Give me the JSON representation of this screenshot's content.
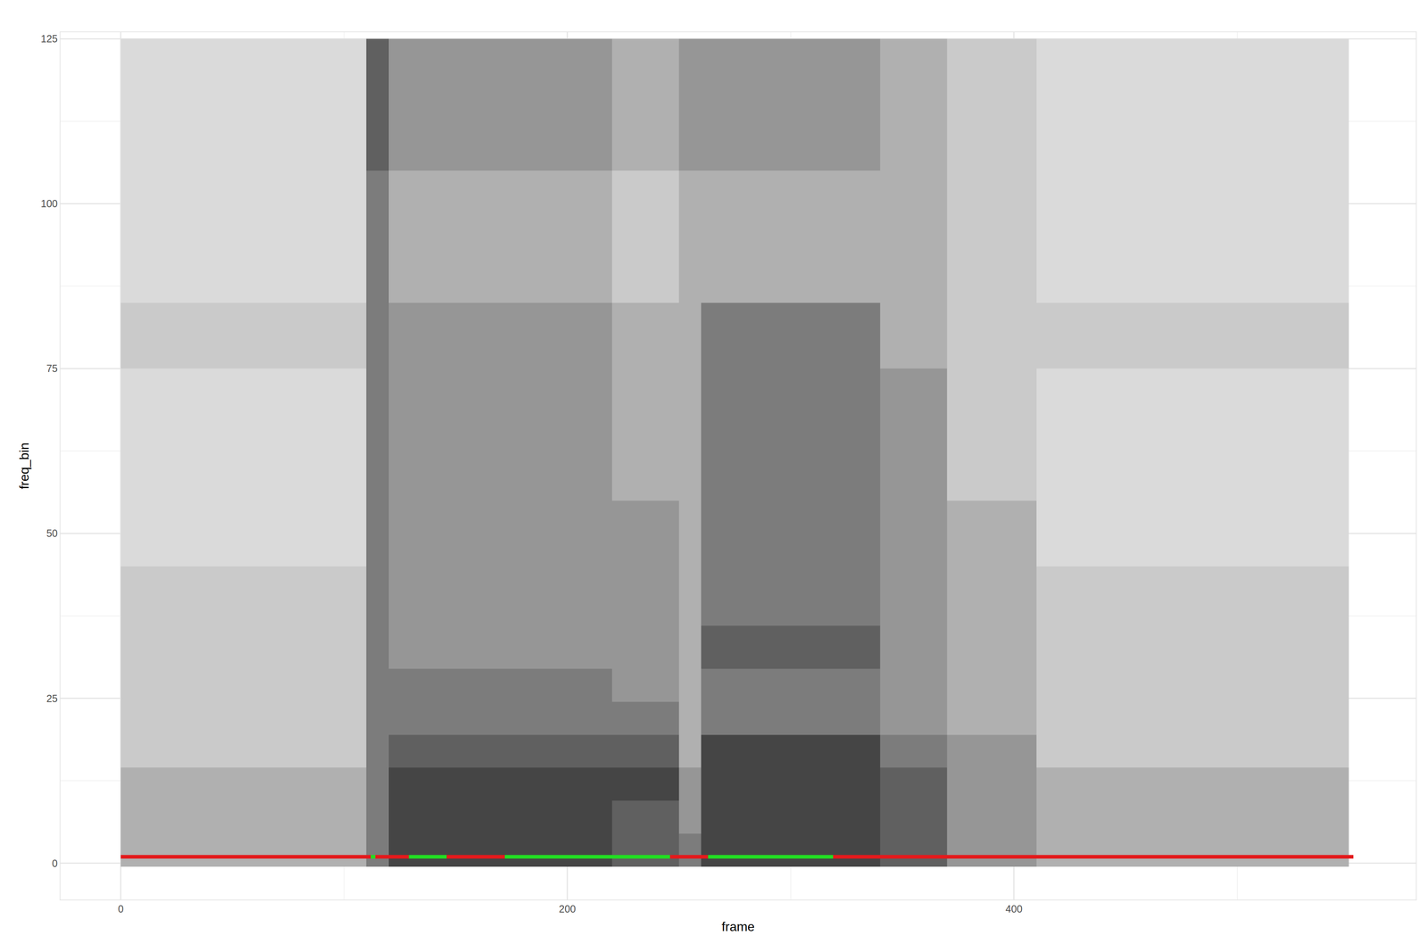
{
  "chart_data": {
    "type": "heatmap",
    "x_label": "frame",
    "y_label": "freq_bin",
    "xlim": [
      -27,
      580
    ],
    "ylim": [
      -5.5,
      126
    ],
    "xticks": [
      0,
      200,
      400
    ],
    "yticks": [
      0,
      25,
      50,
      75,
      100,
      125
    ],
    "grid": true,
    "zlim": [
      0,
      9
    ],
    "x": [
      5,
      15,
      25,
      35,
      45,
      55,
      65,
      75,
      85,
      95,
      105,
      115,
      125,
      135,
      145,
      155,
      165,
      175,
      185,
      195,
      205,
      215,
      225,
      235,
      245,
      255,
      265,
      275,
      285,
      295,
      305,
      315,
      325,
      335,
      345,
      355,
      365,
      375,
      385,
      395,
      405,
      415,
      425,
      435,
      445,
      455,
      465,
      475,
      485,
      495,
      505,
      515,
      525,
      535,
      545
    ],
    "y": [
      2,
      7,
      12,
      17,
      22,
      27,
      32,
      40,
      50,
      60,
      70,
      80,
      90,
      100,
      110,
      120
    ],
    "cells": [
      [
        4,
        4,
        4,
        3,
        3,
        3,
        3,
        3,
        2,
        2,
        2,
        3,
        2,
        2,
        2,
        2
      ],
      [
        4,
        4,
        4,
        3,
        3,
        3,
        3,
        3,
        2,
        2,
        2,
        3,
        2,
        2,
        2,
        2
      ],
      [
        4,
        4,
        4,
        3,
        3,
        3,
        3,
        3,
        2,
        2,
        2,
        3,
        2,
        2,
        2,
        2
      ],
      [
        4,
        4,
        4,
        3,
        3,
        3,
        3,
        3,
        2,
        2,
        2,
        3,
        2,
        2,
        2,
        2
      ],
      [
        4,
        4,
        4,
        3,
        3,
        3,
        3,
        3,
        2,
        2,
        2,
        3,
        2,
        2,
        2,
        2
      ],
      [
        4,
        4,
        4,
        3,
        3,
        3,
        3,
        3,
        2,
        2,
        2,
        3,
        2,
        2,
        2,
        2
      ],
      [
        4,
        4,
        4,
        3,
        3,
        3,
        3,
        3,
        2,
        2,
        2,
        3,
        2,
        2,
        2,
        2
      ],
      [
        4,
        4,
        4,
        3,
        3,
        3,
        3,
        3,
        2,
        2,
        2,
        3,
        2,
        2,
        2,
        2
      ],
      [
        4,
        4,
        4,
        3,
        3,
        3,
        3,
        3,
        2,
        2,
        2,
        3,
        2,
        2,
        2,
        2
      ],
      [
        4,
        4,
        4,
        3,
        3,
        3,
        3,
        3,
        2,
        2,
        2,
        3,
        2,
        2,
        2,
        2
      ],
      [
        4,
        4,
        4,
        3,
        3,
        3,
        3,
        3,
        2,
        2,
        2,
        3,
        2,
        2,
        2,
        2
      ],
      [
        6,
        6,
        6,
        6,
        6,
        6,
        6,
        6,
        6,
        6,
        6,
        6,
        6,
        6,
        7,
        7
      ],
      [
        8,
        8,
        8,
        7,
        6,
        6,
        5,
        5,
        5,
        5,
        5,
        5,
        4,
        4,
        5,
        5
      ],
      [
        8,
        8,
        8,
        7,
        6,
        6,
        5,
        5,
        5,
        5,
        5,
        5,
        4,
        4,
        5,
        5
      ],
      [
        8,
        8,
        8,
        7,
        6,
        6,
        5,
        5,
        5,
        5,
        5,
        5,
        4,
        4,
        5,
        5
      ],
      [
        8,
        8,
        8,
        7,
        6,
        6,
        5,
        5,
        5,
        5,
        5,
        5,
        4,
        4,
        5,
        5
      ],
      [
        8,
        8,
        8,
        7,
        6,
        6,
        5,
        5,
        5,
        5,
        5,
        5,
        4,
        4,
        5,
        5
      ],
      [
        8,
        8,
        8,
        7,
        6,
        6,
        5,
        5,
        5,
        5,
        5,
        5,
        4,
        4,
        5,
        5
      ],
      [
        8,
        8,
        8,
        7,
        6,
        6,
        5,
        5,
        5,
        5,
        5,
        5,
        4,
        4,
        5,
        5
      ],
      [
        8,
        8,
        8,
        7,
        6,
        6,
        5,
        5,
        5,
        5,
        5,
        5,
        4,
        4,
        5,
        5
      ],
      [
        8,
        8,
        8,
        7,
        6,
        6,
        5,
        5,
        5,
        5,
        5,
        5,
        4,
        4,
        5,
        5
      ],
      [
        8,
        8,
        8,
        7,
        6,
        6,
        5,
        5,
        5,
        5,
        5,
        5,
        4,
        4,
        5,
        5
      ],
      [
        7,
        7,
        8,
        7,
        6,
        5,
        5,
        5,
        5,
        4,
        4,
        4,
        3,
        3,
        4,
        4
      ],
      [
        7,
        7,
        8,
        7,
        6,
        5,
        5,
        5,
        5,
        4,
        4,
        4,
        3,
        3,
        4,
        4
      ],
      [
        7,
        7,
        8,
        7,
        6,
        5,
        5,
        5,
        5,
        4,
        4,
        4,
        3,
        3,
        4,
        4
      ],
      [
        6,
        5,
        5,
        4,
        4,
        4,
        4,
        4,
        4,
        4,
        4,
        4,
        4,
        4,
        5,
        5
      ],
      [
        8,
        8,
        8,
        8,
        6,
        6,
        7,
        6,
        6,
        6,
        6,
        6,
        4,
        4,
        5,
        5
      ],
      [
        8,
        8,
        8,
        8,
        6,
        6,
        7,
        6,
        6,
        6,
        6,
        6,
        4,
        4,
        5,
        5
      ],
      [
        8,
        8,
        8,
        8,
        6,
        6,
        7,
        6,
        6,
        6,
        6,
        6,
        4,
        4,
        5,
        5
      ],
      [
        8,
        8,
        8,
        8,
        6,
        6,
        7,
        6,
        6,
        6,
        6,
        6,
        4,
        4,
        5,
        5
      ],
      [
        8,
        8,
        8,
        8,
        6,
        6,
        7,
        6,
        6,
        6,
        6,
        6,
        4,
        4,
        5,
        5
      ],
      [
        8,
        8,
        8,
        8,
        6,
        6,
        7,
        6,
        6,
        6,
        6,
        6,
        4,
        4,
        5,
        5
      ],
      [
        8,
        8,
        8,
        8,
        6,
        6,
        7,
        6,
        6,
        6,
        6,
        6,
        4,
        4,
        5,
        5
      ],
      [
        8,
        8,
        8,
        8,
        6,
        6,
        7,
        6,
        6,
        6,
        6,
        6,
        4,
        4,
        5,
        5
      ],
      [
        7,
        7,
        7,
        6,
        5,
        5,
        5,
        5,
        5,
        5,
        5,
        4,
        4,
        4,
        4,
        4
      ],
      [
        7,
        7,
        7,
        6,
        5,
        5,
        5,
        5,
        5,
        5,
        5,
        4,
        4,
        4,
        4,
        4
      ],
      [
        7,
        7,
        7,
        6,
        5,
        5,
        5,
        5,
        5,
        5,
        5,
        4,
        4,
        4,
        4,
        4
      ],
      [
        5,
        5,
        5,
        5,
        4,
        4,
        4,
        4,
        4,
        3,
        3,
        3,
        3,
        3,
        3,
        3
      ],
      [
        5,
        5,
        5,
        5,
        4,
        4,
        4,
        4,
        4,
        3,
        3,
        3,
        3,
        3,
        3,
        3
      ],
      [
        5,
        5,
        5,
        5,
        4,
        4,
        4,
        4,
        4,
        3,
        3,
        3,
        3,
        3,
        3,
        3
      ],
      [
        5,
        5,
        5,
        5,
        4,
        4,
        4,
        4,
        4,
        3,
        3,
        3,
        3,
        3,
        3,
        3
      ],
      [
        4,
        4,
        4,
        3,
        3,
        3,
        3,
        3,
        2,
        2,
        2,
        3,
        2,
        2,
        2,
        2
      ],
      [
        4,
        4,
        4,
        3,
        3,
        3,
        3,
        3,
        2,
        2,
        2,
        3,
        2,
        2,
        2,
        2
      ],
      [
        4,
        4,
        4,
        3,
        3,
        3,
        3,
        3,
        2,
        2,
        2,
        3,
        2,
        2,
        2,
        2
      ],
      [
        4,
        4,
        4,
        3,
        3,
        3,
        3,
        3,
        2,
        2,
        2,
        3,
        2,
        2,
        2,
        2
      ],
      [
        4,
        4,
        4,
        3,
        3,
        3,
        3,
        3,
        2,
        2,
        2,
        3,
        2,
        2,
        2,
        2
      ],
      [
        4,
        4,
        4,
        3,
        3,
        3,
        3,
        3,
        2,
        2,
        2,
        3,
        2,
        2,
        2,
        2
      ],
      [
        4,
        4,
        4,
        3,
        3,
        3,
        3,
        3,
        2,
        2,
        2,
        3,
        2,
        2,
        2,
        2
      ],
      [
        4,
        4,
        4,
        3,
        3,
        3,
        3,
        3,
        2,
        2,
        2,
        3,
        2,
        2,
        2,
        2
      ],
      [
        4,
        4,
        4,
        3,
        3,
        3,
        3,
        3,
        2,
        2,
        2,
        3,
        2,
        2,
        2,
        2
      ],
      [
        4,
        4,
        4,
        3,
        3,
        3,
        3,
        3,
        2,
        2,
        2,
        3,
        2,
        2,
        2,
        2
      ],
      [
        4,
        4,
        4,
        3,
        3,
        3,
        3,
        3,
        2,
        2,
        2,
        3,
        2,
        2,
        2,
        2
      ],
      [
        4,
        4,
        4,
        3,
        3,
        3,
        3,
        3,
        2,
        2,
        2,
        3,
        2,
        2,
        2,
        2
      ],
      [
        4,
        4,
        4,
        3,
        3,
        3,
        3,
        3,
        2,
        2,
        2,
        3,
        2,
        2,
        2,
        2
      ],
      [
        4,
        4,
        4,
        3,
        3,
        3,
        3,
        3,
        2,
        2,
        2,
        3,
        2,
        2,
        2,
        2
      ]
    ],
    "line_y": 1,
    "segments": [
      {
        "start": 0,
        "end": 112,
        "color": "#e31a1c"
      },
      {
        "start": 112,
        "end": 114,
        "color": "#22dd22"
      },
      {
        "start": 114,
        "end": 129,
        "color": "#e31a1c"
      },
      {
        "start": 129,
        "end": 146,
        "color": "#22dd22"
      },
      {
        "start": 146,
        "end": 172,
        "color": "#e31a1c"
      },
      {
        "start": 172,
        "end": 246,
        "color": "#22dd22"
      },
      {
        "start": 246,
        "end": 263,
        "color": "#e31a1c"
      },
      {
        "start": 263,
        "end": 319,
        "color": "#22dd22"
      },
      {
        "start": 319,
        "end": 552,
        "color": "#e31a1c"
      }
    ]
  }
}
